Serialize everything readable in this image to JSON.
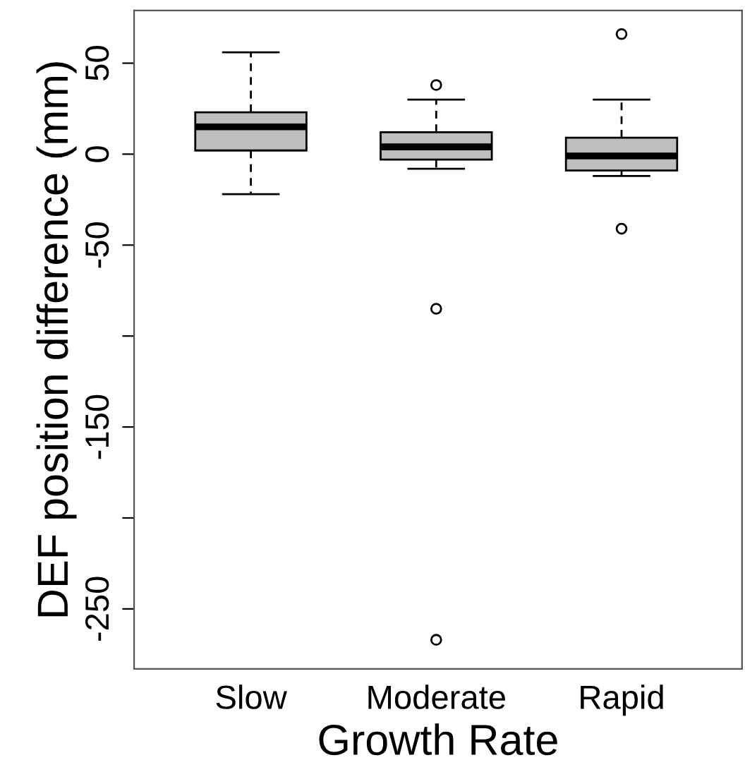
{
  "chart_data": {
    "type": "box",
    "xlabel": "Growth Rate",
    "ylabel": "DEF position difference (mm)",
    "categories": [
      "Slow",
      "Moderate",
      "Rapid"
    ],
    "color": "#bebebe",
    "boxes": [
      {
        "low": -22,
        "q1": 2,
        "median": 15,
        "q3": 23,
        "high": 56
      },
      {
        "low": -8,
        "q1": -3,
        "median": 4,
        "q3": 12,
        "high": 30,
        "outliers": [
          38,
          -85,
          -267
        ]
      },
      {
        "low": -12,
        "q1": -9,
        "median": -1,
        "q3": 9,
        "high": 30,
        "outliers": [
          66,
          -41
        ]
      }
    ],
    "ylim": [
      -283,
      79
    ],
    "yticks": [
      {
        "value": -250,
        "label": "-250"
      },
      {
        "value": -200,
        "label": null
      },
      {
        "value": -150,
        "label": "-150"
      },
      {
        "value": -100,
        "label": null
      },
      {
        "value": -50,
        "label": "-50"
      },
      0,
      50
    ],
    "grid": false,
    "line_style": "dashed"
  }
}
